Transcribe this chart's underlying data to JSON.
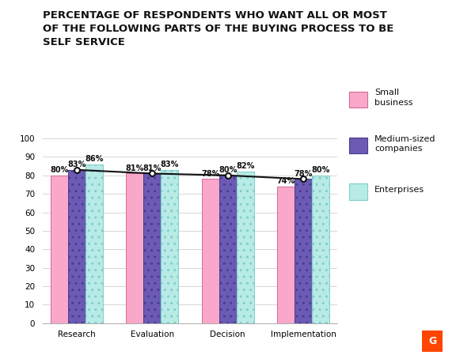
{
  "title": "PERCENTAGE OF RESPONDENTS WHO WANT ALL OR MOST\nOF THE FOLLOWING PARTS OF THE BUYING PROCESS TO BE\nSELF SERVICE",
  "categories": [
    "Research",
    "Evaluation",
    "Decision",
    "Implementation"
  ],
  "series": [
    {
      "name": "Small\nbusiness",
      "values": [
        80,
        81,
        78,
        74
      ],
      "color": "#f9a8c9",
      "edge_color": "#d4689a",
      "hatch": "~"
    },
    {
      "name": "Medium-sized\ncompanies",
      "values": [
        83,
        81,
        80,
        78
      ],
      "color": "#6b5bb5",
      "edge_color": "#4a3d8f",
      "hatch": ".."
    },
    {
      "name": "Enterprises",
      "values": [
        86,
        83,
        82,
        80
      ],
      "color": "#b8eae6",
      "edge_color": "#7ecfc9",
      "hatch": ".."
    }
  ],
  "ylim": [
    0,
    100
  ],
  "yticks": [
    0,
    10,
    20,
    30,
    40,
    50,
    60,
    70,
    80,
    90,
    100
  ],
  "bar_width": 0.23,
  "background_color": "#ffffff",
  "grid_color": "#d0d0d0",
  "title_fontsize": 9.5,
  "label_fontsize": 7,
  "tick_fontsize": 7.5,
  "line_color": "#111111",
  "line_series_index": 1,
  "legend_colors": [
    "#f9a8c9",
    "#6b5bb5",
    "#b8eae6"
  ],
  "legend_edge_colors": [
    "#d4689a",
    "#4a3d8f",
    "#7ecfc9"
  ]
}
